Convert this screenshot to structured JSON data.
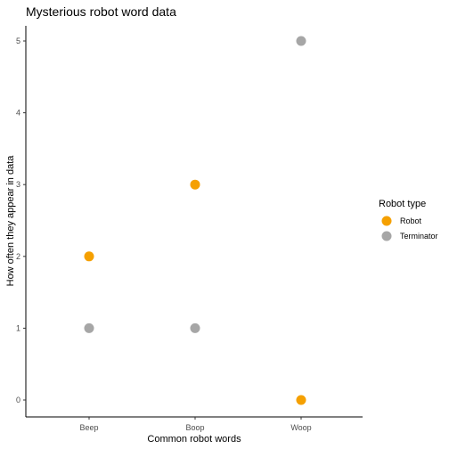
{
  "chart_data": {
    "type": "scatter",
    "title": "Mysterious robot word data",
    "xlabel": "Common robot words",
    "ylabel": "How often they appear in data",
    "categories": [
      "Beep",
      "Boop",
      "Woop"
    ],
    "ylim": [
      0,
      5
    ],
    "yticks": [
      "0",
      "1",
      "2",
      "3",
      "4",
      "5"
    ],
    "grid": false,
    "legend": {
      "title": "Robot type",
      "placement": "right"
    },
    "series": [
      {
        "name": "Robot",
        "color": "#f5a000",
        "values": [
          2,
          3,
          0
        ]
      },
      {
        "name": "Terminator",
        "color": "#a6a6a6",
        "values": [
          1,
          1,
          5
        ]
      }
    ]
  }
}
